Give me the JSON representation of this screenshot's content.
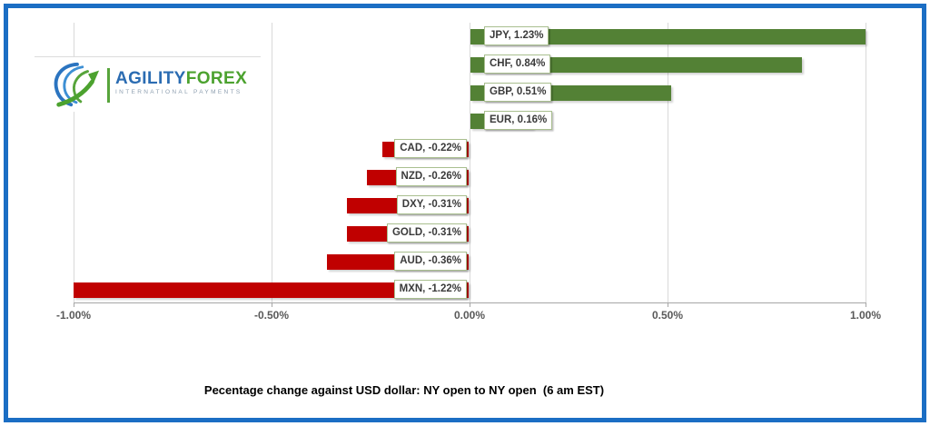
{
  "window": {
    "border_color": "#1b6ec4",
    "background": "#ffffff"
  },
  "logo": {
    "brand_primary": "AGILITY",
    "brand_secondary": "FOREX",
    "tagline": "INTERNATIONAL PAYMENTS",
    "primary_color": "#2b6cb2",
    "secondary_color": "#4ca22f",
    "tagline_color": "#8e9fb0",
    "divider_color": "#57a43b"
  },
  "chart_data": {
    "type": "bar",
    "orientation": "horizontal",
    "title": "Pecentage change against USD dollar: NY open to NY open  (6 am EST)",
    "categories": [
      "JPY",
      "CHF",
      "GBP",
      "EUR",
      "CAD",
      "NZD",
      "DXY",
      "GOLD",
      "AUD",
      "MXN"
    ],
    "values": [
      1.23,
      0.84,
      0.51,
      0.16,
      -0.22,
      -0.26,
      -0.31,
      -0.31,
      -0.36,
      -1.22
    ],
    "data_labels": [
      "JPY, 1.23%",
      "CHF, 0.84%",
      "GBP, 0.51%",
      "EUR, 0.16%",
      "CAD, -0.22%",
      "NZD, -0.26%",
      "DXY, -0.31%",
      "GOLD, -0.31%",
      "AUD, -0.36%",
      "MXN, -1.22%"
    ],
    "xlim": [
      -1.0,
      1.0
    ],
    "x_ticks": [
      -1.0,
      -0.5,
      0,
      0.5,
      1.0
    ],
    "x_tick_labels": [
      "-1.00%",
      "-0.50%",
      "0.00%",
      "0.50%",
      "1.00%"
    ],
    "grid": true,
    "legend": "none",
    "positive_color": "#538135",
    "negative_color": "#c00000",
    "label_box_border": "#a9bf8f",
    "label_text_color": "#3a3a3a",
    "grid_color": "#d9d9d9",
    "axis_color": "#a6a6a6",
    "tick_label_color": "#595959"
  }
}
